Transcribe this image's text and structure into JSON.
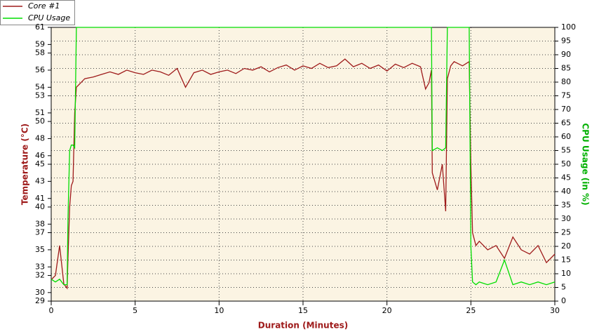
{
  "chart_data": {
    "type": "line",
    "x_label": "Duration (Minutes)",
    "y_label": "Temperature (°C)",
    "y2_label": "CPU Usage (in %)",
    "x": [
      0,
      0.25,
      0.5,
      0.75,
      0.95,
      1,
      1.1,
      1.2,
      1.3,
      1.4,
      1.5,
      1.75,
      2,
      2.5,
      3,
      3.5,
      4,
      4.5,
      5,
      5.5,
      6,
      6.5,
      7,
      7.5,
      8,
      8.5,
      9,
      9.5,
      10,
      10.5,
      11,
      11.5,
      12,
      12.5,
      13,
      13.5,
      14,
      14.5,
      15,
      15.5,
      16,
      16.5,
      17,
      17.5,
      18,
      18.5,
      19,
      19.5,
      20,
      20.5,
      21,
      21.5,
      22,
      22.3,
      22.5,
      22.65,
      22.7,
      23,
      23.3,
      23.5,
      23.6,
      23.8,
      24,
      24.5,
      24.9,
      25,
      25.1,
      25.3,
      25.5,
      26,
      26.5,
      27,
      27.5,
      28,
      28.5,
      29,
      29.5,
      30
    ],
    "series": [
      {
        "name": "Core #1",
        "color": "#9e1a1a",
        "axis": "y",
        "values": [
          31.5,
          32,
          35.5,
          31,
          30.5,
          34,
          40,
          42.5,
          43,
          51,
          54,
          54.5,
          55,
          55.2,
          55.5,
          55.8,
          55.5,
          56,
          55.7,
          55.5,
          56,
          55.8,
          55.4,
          56.2,
          54,
          55.7,
          56,
          55.5,
          55.8,
          56,
          55.6,
          56.2,
          56,
          56.4,
          55.8,
          56.3,
          56.6,
          56,
          56.5,
          56.2,
          56.8,
          56.3,
          56.5,
          57.3,
          56.4,
          56.8,
          56.2,
          56.6,
          55.9,
          56.7,
          56.3,
          56.8,
          56.4,
          53.8,
          54.5,
          56,
          44,
          42,
          45,
          39.5,
          55,
          56.5,
          57,
          56.5,
          57,
          45,
          37,
          35.5,
          36,
          35,
          35.5,
          34,
          36.5,
          35,
          34.5,
          35.5,
          33.5,
          34.5
        ]
      },
      {
        "name": "CPU Usage",
        "color": "#00dd00",
        "axis": "y2",
        "values": [
          8,
          7,
          8,
          6,
          6,
          30,
          55,
          57,
          57,
          56,
          100,
          100,
          100,
          100,
          100,
          100,
          100,
          100,
          100,
          100,
          100,
          100,
          100,
          100,
          100,
          100,
          100,
          100,
          100,
          100,
          100,
          100,
          100,
          100,
          100,
          100,
          100,
          100,
          100,
          100,
          100,
          100,
          100,
          100,
          100,
          100,
          100,
          100,
          100,
          100,
          100,
          100,
          100,
          100,
          100,
          100,
          55,
          56,
          55,
          56,
          100,
          100,
          100,
          100,
          100,
          20,
          7,
          6,
          7,
          6,
          7,
          15,
          6,
          7,
          6,
          7,
          6,
          7
        ]
      }
    ],
    "xlim": [
      0,
      30
    ],
    "xticks": [
      0,
      5,
      10,
      15,
      20,
      25,
      30
    ],
    "ylim": [
      29,
      61
    ],
    "yticks": [
      29,
      30,
      32,
      33,
      35,
      37,
      38,
      40,
      41,
      43,
      45,
      46,
      48,
      50,
      51,
      53,
      54,
      56,
      58,
      59,
      61
    ],
    "y2lim": [
      0,
      100
    ],
    "y2ticks": [
      0,
      5,
      10,
      15,
      20,
      25,
      30,
      35,
      40,
      45,
      50,
      55,
      60,
      65,
      70,
      75,
      80,
      85,
      90,
      95,
      100
    ],
    "grid": true
  }
}
